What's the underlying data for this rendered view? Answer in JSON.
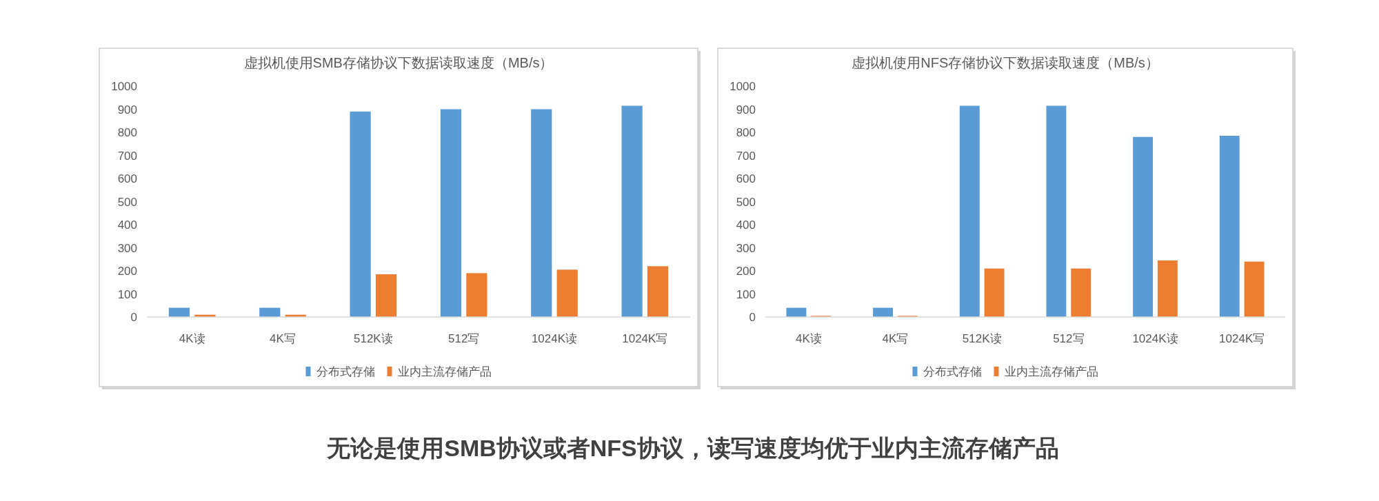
{
  "chart_data": [
    {
      "type": "bar",
      "title": "虚拟机使用SMB存储协议下数据读取速度（MB/s）",
      "categories": [
        "4K读",
        "4K写",
        "512K读",
        "512写",
        "1024K读",
        "1024K写"
      ],
      "series": [
        {
          "name": "分布式存储",
          "color": "#5b9bd5",
          "values": [
            40,
            40,
            890,
            900,
            900,
            915
          ]
        },
        {
          "name": "业内主流存储产品",
          "color": "#ed7d31",
          "values": [
            10,
            10,
            185,
            190,
            205,
            220
          ]
        }
      ],
      "ylim": [
        0,
        1000
      ],
      "yticks": [
        0,
        100,
        200,
        300,
        400,
        500,
        600,
        700,
        800,
        900,
        1000
      ],
      "legend": "bottom"
    },
    {
      "type": "bar",
      "title": "虚拟机使用NFS存储协议下数据读取速度（MB/s）",
      "categories": [
        "4K读",
        "4K写",
        "512K读",
        "512写",
        "1024K读",
        "1024K写"
      ],
      "series": [
        {
          "name": "分布式存储",
          "color": "#5b9bd5",
          "values": [
            40,
            40,
            915,
            915,
            780,
            785
          ]
        },
        {
          "name": "业内主流存储产品",
          "color": "#ed7d31",
          "values": [
            5,
            5,
            210,
            210,
            245,
            240
          ]
        }
      ],
      "ylim": [
        0,
        1000
      ],
      "yticks": [
        0,
        100,
        200,
        300,
        400,
        500,
        600,
        700,
        800,
        900,
        1000
      ],
      "legend": "bottom"
    },
    {
      "type": "other",
      "title": "无论是使用SMB协议或者NFS协议，读写速度均优于业内主流存储产品"
    }
  ]
}
